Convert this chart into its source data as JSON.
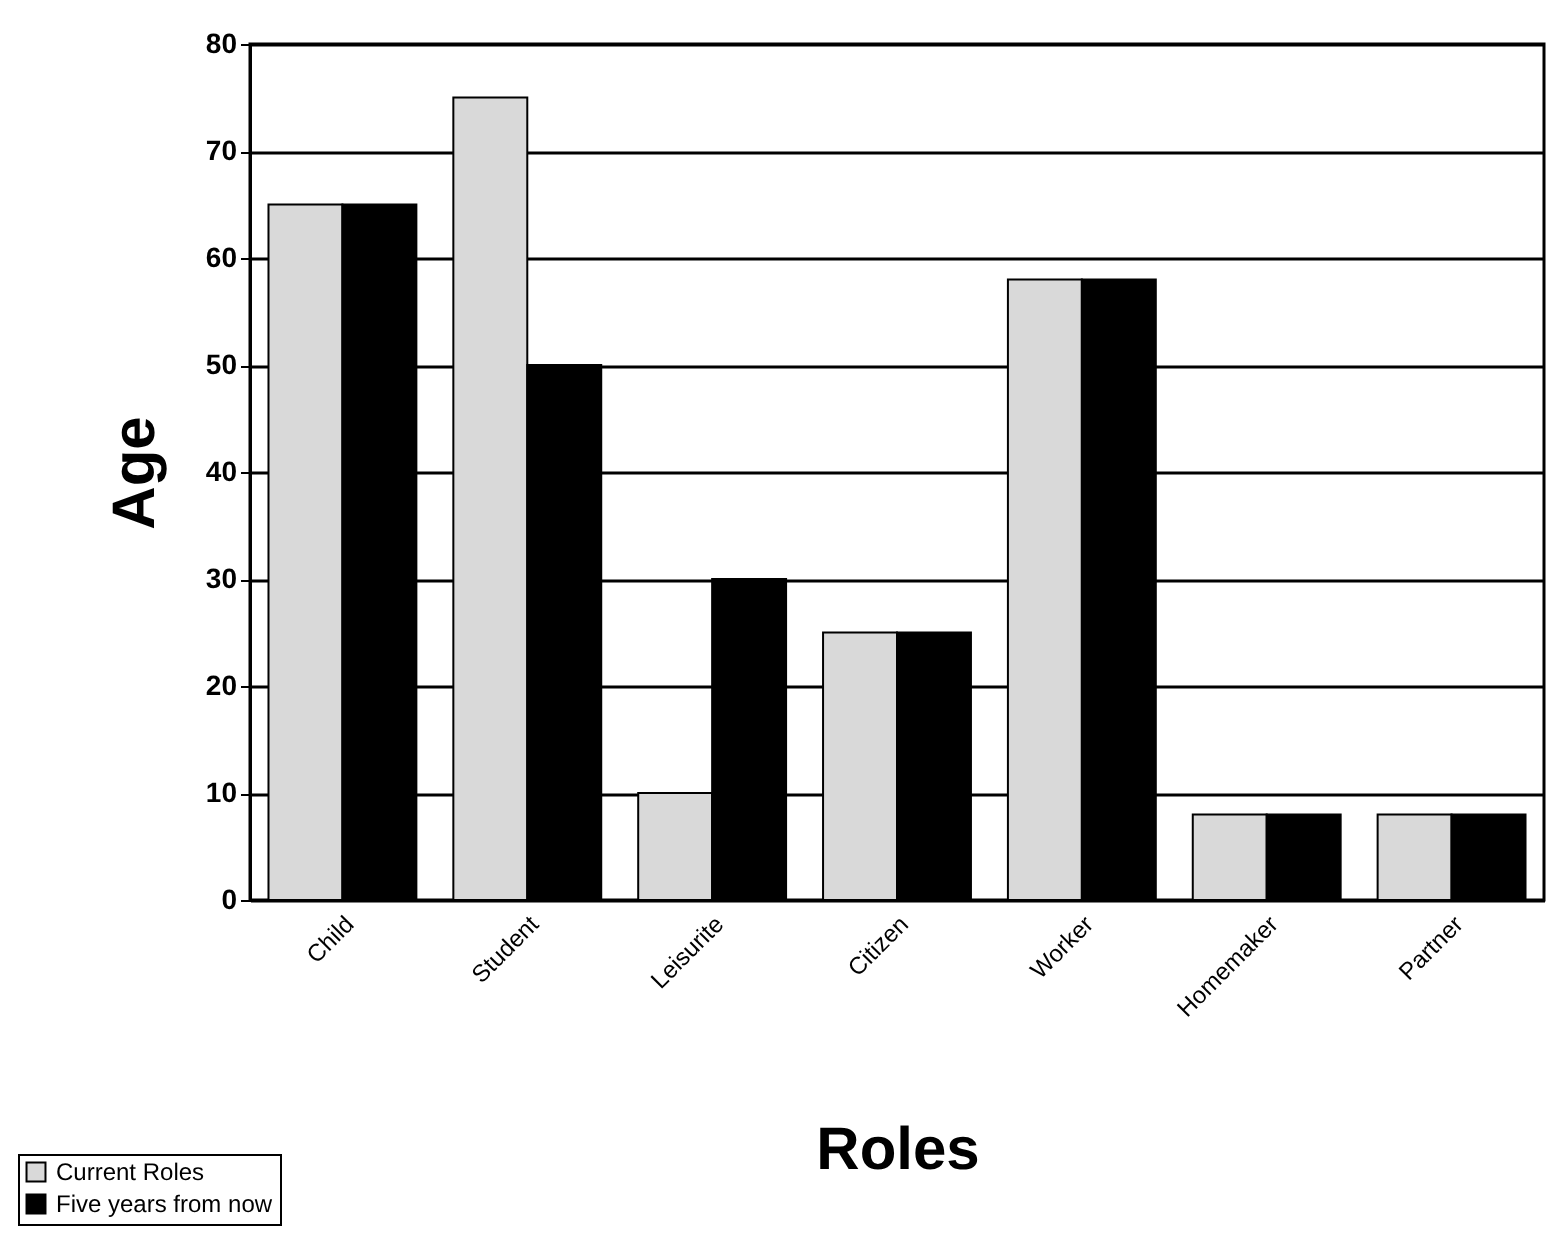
{
  "chart_data": {
    "type": "bar",
    "xlabel": "Roles",
    "ylabel": "Age",
    "categories": [
      "Child",
      "Student",
      "Leisurite",
      "Citizen",
      "Worker",
      "Homemaker",
      "Partner"
    ],
    "series": [
      {
        "name": "Current Roles",
        "color": "#d9d9d9",
        "values": [
          65,
          75,
          10,
          25,
          58,
          8,
          8
        ]
      },
      {
        "name": "Five years from now",
        "color": "#000000",
        "values": [
          65,
          50,
          30,
          25,
          58,
          8,
          8
        ]
      }
    ],
    "ylim": [
      0,
      80
    ],
    "yticks": [
      0,
      10,
      20,
      30,
      40,
      50,
      60,
      70,
      80
    ],
    "grid": "y",
    "legend": "bottom left"
  }
}
